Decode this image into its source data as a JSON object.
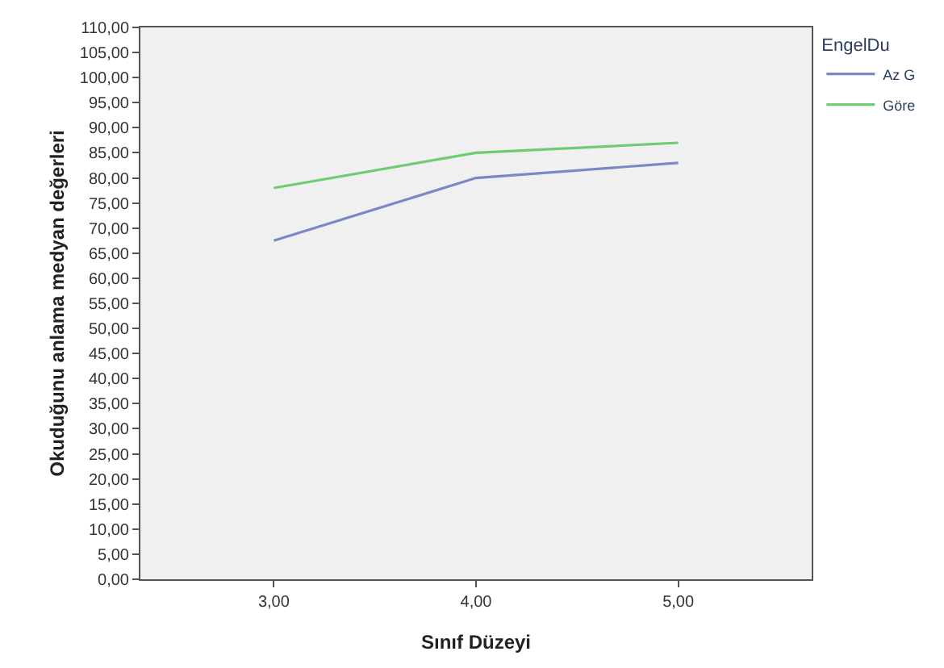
{
  "chart_data": {
    "type": "line",
    "xlabel": "Sınıf Düzeyi",
    "ylabel": "Okuduğunu anlama medyan değerleri",
    "legend_title": "EngelDu",
    "x": [
      3,
      4,
      5
    ],
    "series": [
      {
        "name": "Az G",
        "color": "#7b88c6",
        "values": [
          67.5,
          80,
          83
        ]
      },
      {
        "name": "Göre",
        "color": "#6ecc72",
        "values": [
          78,
          85,
          87
        ]
      }
    ],
    "xlim": [
      2.34,
      5.66
    ],
    "xticks": [
      {
        "value": 3,
        "label": "3,00"
      },
      {
        "value": 4,
        "label": "4,00"
      },
      {
        "value": 5,
        "label": "5,00"
      }
    ],
    "ylim": [
      0,
      110
    ],
    "yticks": [
      {
        "value": 0,
        "label": "0,00"
      },
      {
        "value": 5,
        "label": "5,00"
      },
      {
        "value": 10,
        "label": "10,00"
      },
      {
        "value": 15,
        "label": "15,00"
      },
      {
        "value": 20,
        "label": "20,00"
      },
      {
        "value": 25,
        "label": "25,00"
      },
      {
        "value": 30,
        "label": "30,00"
      },
      {
        "value": 35,
        "label": "35,00"
      },
      {
        "value": 40,
        "label": "40,00"
      },
      {
        "value": 45,
        "label": "45,00"
      },
      {
        "value": 50,
        "label": "50,00"
      },
      {
        "value": 55,
        "label": "55,00"
      },
      {
        "value": 60,
        "label": "60,00"
      },
      {
        "value": 65,
        "label": "65,00"
      },
      {
        "value": 70,
        "label": "70,00"
      },
      {
        "value": 75,
        "label": "75,00"
      },
      {
        "value": 80,
        "label": "80,00"
      },
      {
        "value": 85,
        "label": "85,00"
      },
      {
        "value": 90,
        "label": "90,00"
      },
      {
        "value": 95,
        "label": "95,00"
      },
      {
        "value": 100,
        "label": "100,00"
      },
      {
        "value": 105,
        "label": "105,00"
      },
      {
        "value": 110,
        "label": "110,00"
      }
    ],
    "grid": false,
    "legend": "top right",
    "marker": "none",
    "line_style": "solid"
  }
}
